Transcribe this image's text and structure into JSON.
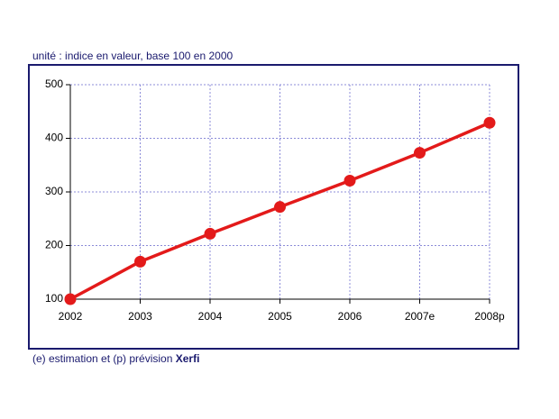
{
  "chart_data": {
    "type": "line",
    "subtitle": "unité : indice en valeur, base 100 en 2000",
    "categories": [
      "2002",
      "2003",
      "2004",
      "2005",
      "2006",
      "2007e",
      "2008p"
    ],
    "values": [
      100,
      170,
      222,
      272,
      321,
      373,
      429
    ],
    "color": "#e31a1a",
    "ylim": [
      100,
      500
    ],
    "yticks": [
      100,
      200,
      300,
      400,
      500
    ],
    "grid": true,
    "footnote": {
      "text": "(e) estimation et (p) prévision",
      "source": "Xerfi"
    }
  }
}
